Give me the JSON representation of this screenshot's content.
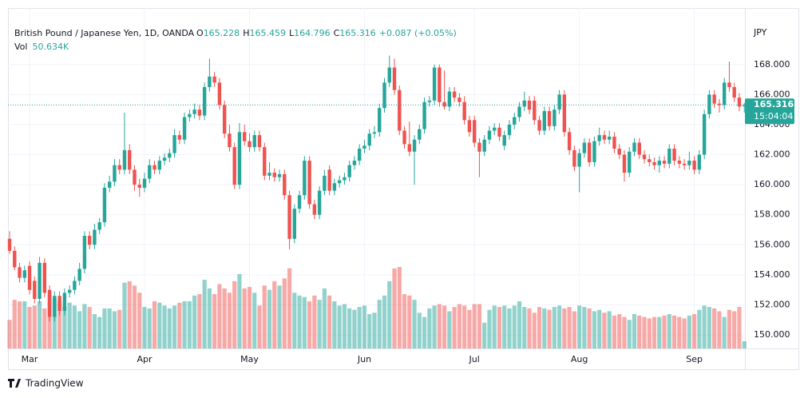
{
  "header": {
    "symbol": "British Pound / Japanese Yen, 1D, OANDA",
    "fields": [
      {
        "key": "O",
        "value": "165.228"
      },
      {
        "key": "H",
        "value": "165.459"
      },
      {
        "key": "L",
        "value": "164.796"
      },
      {
        "key": "C",
        "value": "165.316"
      }
    ],
    "change": "+0.087 (+0.05%)",
    "volume_title": "Vol",
    "volume_value": "50.634K"
  },
  "footer": {
    "brand": "TradingView"
  },
  "chart_data": {
    "type": "candlestick",
    "y_axis_label": "JPY",
    "last_price_label": "165.316",
    "countdown": "15:04:04",
    "up_color": "#26a69a",
    "down_color": "#ef5350",
    "grid": true,
    "ylim": [
      149.1,
      170.7
    ],
    "yticks": [
      {
        "value": 150,
        "label": "150.000"
      },
      {
        "value": 152,
        "label": "152.000"
      },
      {
        "value": 154,
        "label": "154.000"
      },
      {
        "value": 156,
        "label": "156.000"
      },
      {
        "value": 158,
        "label": "158.000"
      },
      {
        "value": 160,
        "label": "160.000"
      },
      {
        "value": 162,
        "label": "162.000"
      },
      {
        "value": 164,
        "label": "164.000"
      },
      {
        "value": 166,
        "label": "166.000"
      },
      {
        "value": 168,
        "label": "168.000"
      }
    ],
    "categories": [
      null,
      null,
      null,
      null,
      "Mar",
      null,
      null,
      null,
      null,
      null,
      null,
      null,
      null,
      null,
      null,
      null,
      null,
      null,
      null,
      null,
      null,
      null,
      null,
      null,
      null,
      null,
      null,
      "Apr",
      null,
      null,
      null,
      null,
      null,
      null,
      null,
      null,
      null,
      null,
      null,
      null,
      null,
      null,
      null,
      null,
      null,
      null,
      null,
      null,
      "May",
      null,
      null,
      null,
      null,
      null,
      null,
      null,
      null,
      null,
      null,
      null,
      null,
      null,
      null,
      null,
      null,
      null,
      null,
      null,
      null,
      null,
      null,
      "Jun",
      null,
      null,
      null,
      null,
      null,
      null,
      null,
      null,
      null,
      null,
      null,
      null,
      null,
      null,
      null,
      null,
      null,
      null,
      null,
      null,
      null,
      "Jul",
      null,
      null,
      null,
      null,
      null,
      null,
      null,
      null,
      null,
      null,
      null,
      null,
      null,
      null,
      null,
      null,
      null,
      null,
      null,
      null,
      "Aug",
      null,
      null,
      null,
      null,
      null,
      null,
      null,
      null,
      null,
      null,
      null,
      null,
      null,
      null,
      null,
      null,
      null,
      null,
      null,
      null,
      null,
      null,
      "Sep",
      null,
      null,
      null,
      null,
      null,
      null,
      null,
      null,
      null,
      null
    ],
    "candles": [
      [
        156.4,
        156.9,
        155.4,
        155.6
      ],
      [
        155.6,
        155.9,
        154.3,
        154.5
      ],
      [
        154.5,
        154.8,
        153.5,
        153.8
      ],
      [
        153.8,
        154.6,
        153.5,
        154.3
      ],
      [
        154.6,
        154.9,
        152.7,
        153.0
      ],
      [
        153.6,
        153.9,
        152.1,
        152.4
      ],
      [
        152.4,
        155.2,
        152.1,
        154.8
      ],
      [
        154.8,
        155.1,
        152.5,
        152.8
      ],
      [
        153.0,
        153.3,
        150.9,
        151.2
      ],
      [
        151.2,
        152.9,
        150.9,
        152.6
      ],
      [
        152.6,
        152.9,
        151.3,
        151.6
      ],
      [
        151.6,
        153.1,
        151.3,
        152.8
      ],
      [
        152.8,
        153.3,
        152.5,
        153.0
      ],
      [
        153.0,
        153.9,
        152.7,
        153.6
      ],
      [
        153.6,
        154.8,
        153.3,
        154.4
      ],
      [
        154.4,
        156.9,
        154.1,
        156.6
      ],
      [
        156.6,
        156.9,
        155.7,
        156.0
      ],
      [
        156.0,
        157.4,
        155.7,
        157.0
      ],
      [
        157.0,
        157.8,
        156.7,
        157.5
      ],
      [
        157.5,
        160.1,
        157.2,
        159.8
      ],
      [
        159.8,
        160.6,
        159.5,
        160.2
      ],
      [
        160.2,
        161.7,
        159.9,
        161.3
      ],
      [
        161.3,
        161.7,
        160.7,
        161.0
      ],
      [
        161.0,
        164.8,
        160.7,
        162.3
      ],
      [
        162.3,
        162.7,
        160.7,
        161.0
      ],
      [
        161.0,
        161.3,
        159.6,
        160.0
      ],
      [
        160.0,
        160.4,
        159.2,
        159.8
      ],
      [
        159.8,
        160.8,
        159.5,
        160.4
      ],
      [
        160.4,
        161.7,
        160.1,
        161.3
      ],
      [
        161.3,
        161.6,
        160.7,
        161.0
      ],
      [
        161.0,
        161.9,
        160.7,
        161.6
      ],
      [
        161.6,
        162.1,
        161.3,
        161.8
      ],
      [
        161.8,
        162.4,
        161.5,
        162.1
      ],
      [
        162.1,
        163.7,
        161.8,
        163.3
      ],
      [
        163.3,
        163.6,
        162.7,
        163.0
      ],
      [
        163.0,
        164.8,
        162.7,
        164.5
      ],
      [
        164.5,
        165.0,
        164.2,
        164.7
      ],
      [
        164.7,
        165.4,
        164.4,
        165.0
      ],
      [
        165.0,
        165.3,
        164.3,
        164.6
      ],
      [
        164.6,
        166.8,
        164.3,
        166.5
      ],
      [
        166.5,
        168.4,
        166.2,
        167.2
      ],
      [
        167.2,
        167.5,
        166.5,
        166.8
      ],
      [
        166.8,
        167.1,
        165.0,
        165.3
      ],
      [
        165.3,
        165.6,
        163.1,
        163.4
      ],
      [
        163.4,
        164.0,
        162.2,
        162.5
      ],
      [
        162.5,
        162.8,
        159.7,
        160.0
      ],
      [
        160.0,
        164.1,
        159.7,
        163.5
      ],
      [
        163.5,
        164.0,
        162.6,
        162.9
      ],
      [
        162.9,
        163.4,
        162.2,
        162.5
      ],
      [
        162.5,
        163.6,
        162.2,
        163.3
      ],
      [
        163.3,
        163.6,
        162.2,
        162.5
      ],
      [
        162.5,
        162.8,
        160.3,
        160.6
      ],
      [
        160.6,
        161.5,
        160.3,
        160.8
      ],
      [
        160.8,
        161.1,
        160.2,
        160.5
      ],
      [
        160.5,
        161.0,
        160.2,
        160.7
      ],
      [
        160.7,
        161.0,
        159.0,
        159.3
      ],
      [
        159.3,
        159.6,
        155.7,
        156.4
      ],
      [
        156.4,
        158.7,
        156.1,
        158.4
      ],
      [
        158.4,
        159.6,
        158.1,
        159.3
      ],
      [
        159.3,
        161.9,
        159.0,
        161.6
      ],
      [
        161.6,
        161.9,
        158.4,
        158.7
      ],
      [
        158.7,
        159.0,
        157.7,
        158.0
      ],
      [
        158.0,
        159.9,
        157.7,
        159.6
      ],
      [
        159.6,
        161.0,
        159.3,
        160.6
      ],
      [
        161.0,
        161.3,
        159.3,
        159.6
      ],
      [
        159.6,
        160.4,
        159.3,
        160.1
      ],
      [
        160.1,
        160.6,
        159.8,
        160.3
      ],
      [
        160.3,
        160.8,
        160.0,
        160.5
      ],
      [
        160.5,
        161.6,
        160.2,
        161.3
      ],
      [
        161.3,
        161.9,
        161.0,
        161.6
      ],
      [
        161.6,
        162.7,
        161.3,
        162.4
      ],
      [
        162.4,
        163.0,
        162.1,
        162.6
      ],
      [
        162.6,
        163.7,
        162.3,
        163.4
      ],
      [
        163.4,
        163.9,
        163.1,
        163.5
      ],
      [
        163.5,
        165.4,
        163.2,
        165.1
      ],
      [
        165.1,
        167.1,
        164.8,
        166.8
      ],
      [
        166.8,
        168.6,
        166.5,
        167.8
      ],
      [
        167.8,
        168.4,
        166.0,
        166.3
      ],
      [
        166.3,
        166.6,
        163.3,
        163.6
      ],
      [
        163.6,
        163.9,
        162.4,
        162.7
      ],
      [
        162.7,
        164.2,
        161.9,
        162.2
      ],
      [
        162.2,
        163.3,
        160.0,
        163.0
      ],
      [
        163.0,
        164.0,
        162.7,
        163.7
      ],
      [
        163.7,
        165.8,
        163.4,
        165.5
      ],
      [
        165.5,
        165.9,
        165.2,
        165.6
      ],
      [
        165.6,
        168.0,
        165.3,
        167.8
      ],
      [
        167.8,
        168.0,
        165.2,
        165.5
      ],
      [
        165.5,
        167.6,
        165.0,
        165.2
      ],
      [
        165.2,
        166.5,
        164.9,
        166.2
      ],
      [
        166.2,
        166.5,
        165.5,
        165.8
      ],
      [
        165.8,
        166.1,
        165.2,
        165.5
      ],
      [
        165.5,
        165.9,
        164.0,
        164.3
      ],
      [
        164.3,
        164.6,
        163.2,
        163.5
      ],
      [
        164.3,
        164.6,
        162.5,
        162.8
      ],
      [
        162.8,
        163.1,
        160.5,
        162.2
      ],
      [
        162.2,
        163.3,
        161.9,
        163.0
      ],
      [
        163.0,
        163.9,
        162.7,
        163.6
      ],
      [
        163.6,
        164.1,
        163.3,
        163.8
      ],
      [
        163.8,
        164.1,
        162.9,
        163.2
      ],
      [
        162.6,
        163.6,
        162.3,
        163.3
      ],
      [
        163.3,
        164.3,
        163.0,
        164.0
      ],
      [
        164.0,
        164.8,
        163.7,
        164.5
      ],
      [
        164.5,
        165.5,
        164.2,
        165.2
      ],
      [
        165.2,
        166.2,
        164.9,
        165.6
      ],
      [
        165.6,
        165.9,
        164.7,
        165.0
      ],
      [
        165.6,
        165.9,
        164.0,
        164.3
      ],
      [
        164.3,
        164.6,
        163.3,
        163.6
      ],
      [
        163.6,
        165.2,
        163.3,
        164.9
      ],
      [
        164.9,
        165.2,
        163.6,
        163.9
      ],
      [
        163.9,
        165.3,
        163.6,
        165.0
      ],
      [
        165.0,
        166.3,
        164.7,
        166.0
      ],
      [
        166.0,
        166.3,
        163.2,
        163.5
      ],
      [
        163.5,
        163.8,
        162.0,
        162.3
      ],
      [
        162.3,
        162.6,
        160.9,
        161.2
      ],
      [
        161.2,
        162.4,
        159.5,
        162.1
      ],
      [
        162.1,
        163.1,
        161.8,
        162.8
      ],
      [
        162.8,
        163.1,
        161.2,
        161.5
      ],
      [
        161.5,
        163.2,
        161.2,
        162.9
      ],
      [
        162.9,
        163.8,
        162.6,
        163.3
      ],
      [
        163.3,
        163.6,
        162.7,
        163.0
      ],
      [
        163.0,
        163.6,
        162.7,
        163.2
      ],
      [
        163.2,
        163.5,
        162.1,
        162.4
      ],
      [
        162.4,
        162.7,
        161.7,
        162.0
      ],
      [
        162.0,
        162.3,
        160.2,
        160.8
      ],
      [
        160.8,
        162.5,
        160.5,
        162.2
      ],
      [
        162.2,
        163.1,
        161.9,
        162.8
      ],
      [
        162.8,
        163.1,
        161.7,
        162.0
      ],
      [
        162.0,
        162.3,
        161.4,
        161.7
      ],
      [
        161.7,
        162.0,
        161.2,
        161.5
      ],
      [
        161.5,
        161.8,
        161.0,
        161.3
      ],
      [
        161.3,
        161.9,
        160.8,
        161.6
      ],
      [
        161.6,
        161.9,
        161.1,
        161.4
      ],
      [
        161.4,
        162.7,
        161.1,
        162.4
      ],
      [
        162.4,
        162.7,
        161.3,
        161.6
      ],
      [
        161.6,
        161.9,
        161.1,
        161.4
      ],
      [
        161.4,
        161.7,
        161.0,
        161.3
      ],
      [
        161.3,
        162.2,
        161.0,
        161.6
      ],
      [
        161.6,
        161.9,
        160.7,
        161.0
      ],
      [
        161.0,
        162.3,
        160.7,
        162.0
      ],
      [
        162.0,
        165.0,
        161.7,
        164.7
      ],
      [
        164.7,
        166.3,
        164.4,
        166.0
      ],
      [
        166.0,
        166.3,
        165.1,
        165.4
      ],
      [
        165.4,
        165.7,
        164.8,
        165.3
      ],
      [
        165.3,
        167.1,
        165.0,
        166.8
      ],
      [
        166.8,
        168.2,
        166.2,
        166.5
      ],
      [
        166.5,
        166.8,
        165.5,
        165.8
      ],
      [
        165.8,
        166.1,
        164.9,
        165.2
      ],
      [
        165.228,
        165.459,
        164.796,
        165.316
      ]
    ],
    "volumes": [
      200,
      340,
      330,
      330,
      290,
      300,
      330,
      280,
      390,
      350,
      330,
      290,
      320,
      300,
      260,
      310,
      290,
      240,
      220,
      280,
      280,
      260,
      270,
      460,
      470,
      440,
      390,
      290,
      280,
      330,
      320,
      300,
      280,
      300,
      320,
      330,
      330,
      370,
      380,
      480,
      420,
      380,
      450,
      420,
      390,
      470,
      520,
      420,
      430,
      390,
      300,
      440,
      410,
      470,
      440,
      490,
      560,
      390,
      370,
      360,
      330,
      370,
      340,
      420,
      370,
      330,
      300,
      310,
      280,
      270,
      290,
      300,
      240,
      250,
      340,
      370,
      470,
      560,
      570,
      380,
      370,
      340,
      250,
      220,
      280,
      300,
      310,
      300,
      260,
      290,
      310,
      300,
      270,
      310,
      310,
      180,
      270,
      300,
      290,
      300,
      280,
      300,
      330,
      290,
      280,
      250,
      290,
      280,
      270,
      290,
      300,
      280,
      290,
      260,
      300,
      290,
      280,
      260,
      270,
      250,
      260,
      230,
      240,
      220,
      200,
      240,
      230,
      220,
      210,
      220,
      220,
      230,
      240,
      230,
      220,
      210,
      230,
      240,
      270,
      300,
      290,
      280,
      260,
      220,
      270,
      260,
      290,
      50.634
    ]
  }
}
